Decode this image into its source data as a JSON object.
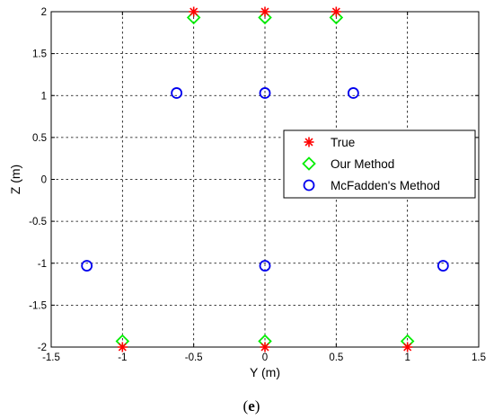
{
  "chart_data": {
    "type": "scatter",
    "xlabel": "Y (m)",
    "ylabel": "Z (m)",
    "xlim": [
      -1.5,
      1.5
    ],
    "ylim": [
      -2,
      2
    ],
    "xticks": [
      -1.5,
      -1,
      -0.5,
      0,
      0.5,
      1,
      1.5
    ],
    "yticks": [
      -2,
      -1.5,
      -1,
      -0.5,
      0,
      0.5,
      1,
      1.5,
      2
    ],
    "xtick_labels": [
      "-1.5",
      "-1",
      "-0.5",
      "0",
      "0.5",
      "1",
      "1.5"
    ],
    "ytick_labels": [
      "-2",
      "-1.5",
      "-1",
      "-0.5",
      "0",
      "0.5",
      "1",
      "1.5",
      "2"
    ],
    "grid": true,
    "legend_position": "middle-right",
    "series": [
      {
        "name": "True",
        "marker": "star",
        "color": "#ff0000",
        "points": [
          [
            -0.5,
            2
          ],
          [
            0,
            2
          ],
          [
            0.5,
            2
          ],
          [
            -1,
            -2
          ],
          [
            0,
            -2
          ],
          [
            1,
            -2
          ]
        ]
      },
      {
        "name": "Our Method",
        "marker": "diamond",
        "color": "#00ee00",
        "points": [
          [
            -0.5,
            1.93
          ],
          [
            0,
            1.93
          ],
          [
            0.5,
            1.93
          ],
          [
            -1,
            -1.93
          ],
          [
            0,
            -1.93
          ],
          [
            1,
            -1.93
          ]
        ]
      },
      {
        "name": "McFadden's Method",
        "marker": "circle",
        "color": "#0000ee",
        "points": [
          [
            -0.62,
            1.03
          ],
          [
            0,
            1.03
          ],
          [
            0.62,
            1.03
          ],
          [
            -1.25,
            -1.03
          ],
          [
            0,
            -1.03
          ],
          [
            1.25,
            -1.03
          ]
        ]
      }
    ]
  },
  "caption": {
    "open": "(",
    "letter": "e",
    "close": ")"
  }
}
